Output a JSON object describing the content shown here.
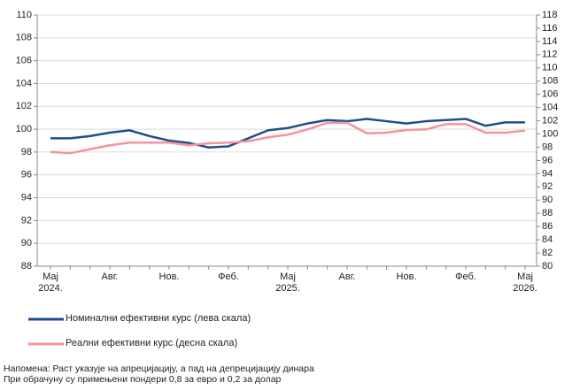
{
  "chart_data": {
    "type": "line",
    "categories": [
      "Мај\n2024.",
      null,
      null,
      "Авг.",
      null,
      null,
      "Нов.",
      null,
      null,
      "Феб.",
      null,
      null,
      "Мај\n2025.",
      null,
      null,
      "Авг.",
      null,
      null,
      "Нов.",
      null,
      null,
      "Феб.",
      null,
      null,
      "Мај\n2026."
    ],
    "series": [
      {
        "name": "Номинални ефективни курс (лева скала)",
        "color": "#1f4e8c",
        "axis": "y",
        "values": [
          99.2,
          99.2,
          99.4,
          99.7,
          99.9,
          99.4,
          99.0,
          98.8,
          98.4,
          98.5,
          99.2,
          99.9,
          100.1,
          100.5,
          100.8,
          100.7,
          100.9,
          100.7,
          100.5,
          100.7,
          100.8,
          100.9,
          100.3,
          100.6,
          100.6
        ]
      },
      {
        "name": "Реални ефективни курс (десна скала)",
        "color": "#f4939c",
        "axis": "y2",
        "values": [
          97.3,
          97.1,
          97.7,
          98.3,
          98.7,
          98.7,
          98.7,
          98.3,
          98.6,
          98.7,
          98.9,
          99.5,
          99.9,
          100.7,
          101.7,
          101.7,
          100.1,
          100.2,
          100.6,
          100.7,
          101.5,
          101.5,
          100.2,
          100.2,
          100.5
        ]
      }
    ],
    "ylim": [
      88,
      110
    ],
    "yticks": [
      88,
      90,
      92,
      94,
      96,
      98,
      100,
      102,
      104,
      106,
      108,
      110
    ],
    "y2lim": [
      80,
      118
    ],
    "y2ticks": [
      80,
      82,
      84,
      86,
      88,
      90,
      92,
      94,
      96,
      98,
      100,
      102,
      104,
      106,
      108,
      110,
      112,
      114,
      116,
      118
    ],
    "grid": true,
    "notes": [
      "Напомена: Раст указује на апрецијацију, а пад на депрецијацију динара",
      "При обрачуну су примењени пондери 0,8 за евро и 0,2 за долар"
    ]
  }
}
